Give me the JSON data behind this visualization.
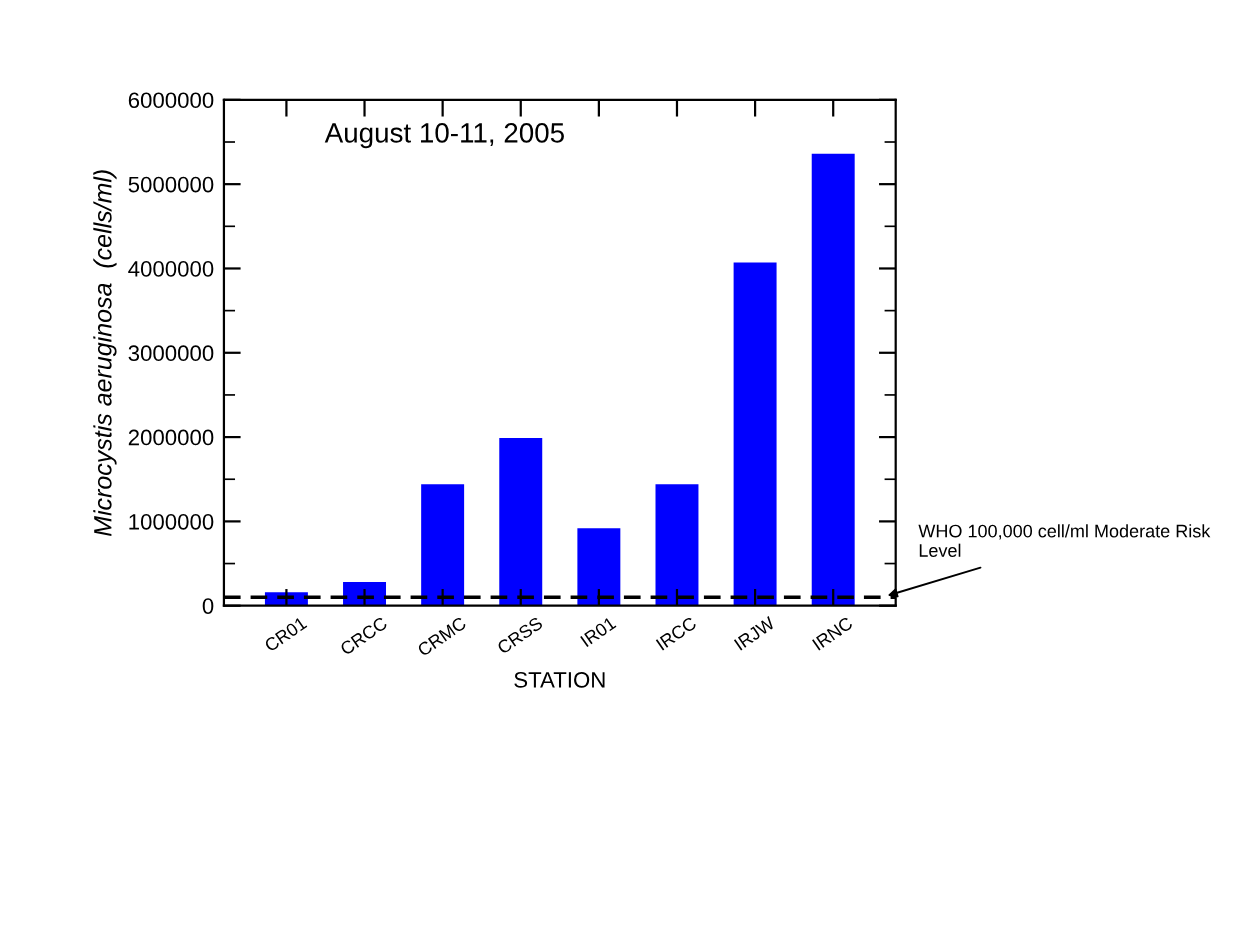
{
  "chart_data": {
    "type": "bar",
    "xlabel": "STATION",
    "ylabel": "Microcystis aeruginosa  (cells/ml)",
    "categories": [
      "CR01",
      "CRCC",
      "CRMC",
      "CRSS",
      "IR01",
      "IRCC",
      "IRJW",
      "IRNC"
    ],
    "values": [
      160000,
      280000,
      1440000,
      1990000,
      920000,
      1440000,
      4070000,
      5360000
    ],
    "color": "#0000ff",
    "ylim": [
      0,
      6000000
    ],
    "yticks": [
      0,
      1000000,
      2000000,
      3000000,
      4000000,
      5000000,
      6000000
    ],
    "annotations": [
      "August 10-11, 2005"
    ],
    "ref_lines": [
      {
        "axis": "y",
        "value": 100000,
        "label": "WHO 100,000 cell/ml Moderate Risk Level",
        "color": "#000000",
        "line_style": "dashed"
      }
    ],
    "grid": false,
    "legend": false
  }
}
